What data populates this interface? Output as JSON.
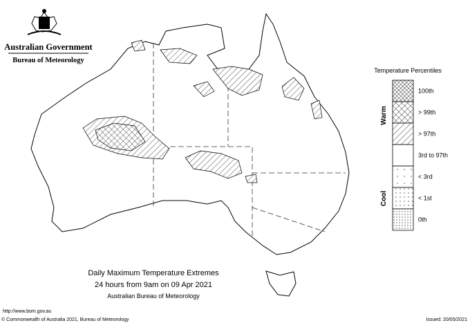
{
  "header": {
    "government": "Australian Government",
    "agency": "Bureau of Meteorology"
  },
  "legend": {
    "title": "Temperature Percentiles",
    "warm_label": "Warm",
    "cool_label": "Cool",
    "items": [
      "100th",
      "> 99th",
      "> 97th",
      "3rd to 97th",
      "< 3rd",
      "< 1st",
      "0th"
    ]
  },
  "caption": {
    "title": "Daily Maximum Temperature Extremes",
    "period": "24 hours from 9am on 09 Apr 2021",
    "source": "Australian Bureau of Meteorology"
  },
  "footer": {
    "url": "http://www.bom.gov.au",
    "copyright": "© Commonwealth of Australia 2021, Bureau of Meteorology",
    "issued": "Issued: 20/05/2021"
  }
}
